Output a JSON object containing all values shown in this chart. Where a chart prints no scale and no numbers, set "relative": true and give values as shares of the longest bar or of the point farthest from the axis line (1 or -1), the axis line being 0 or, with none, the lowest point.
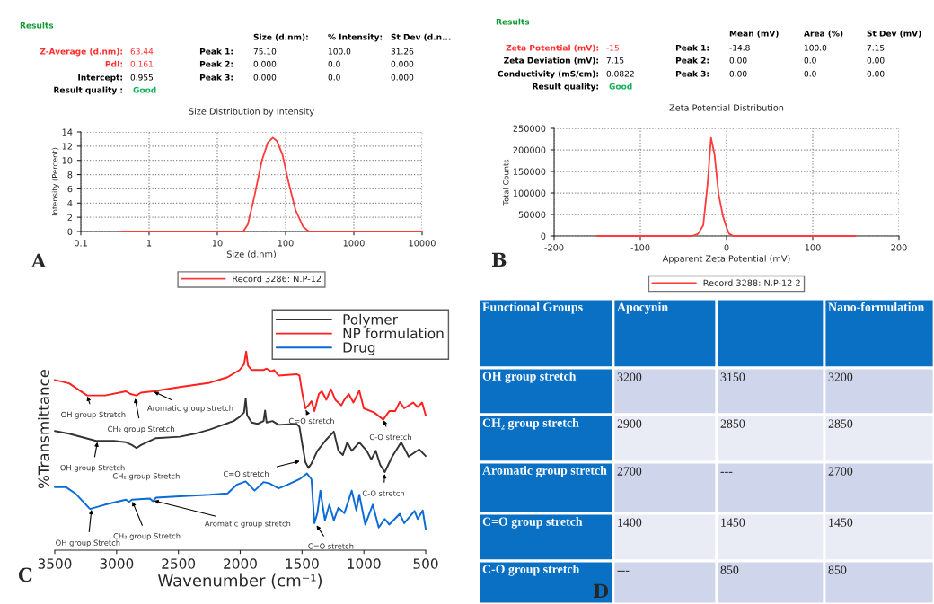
{
  "chart_data": [
    {
      "type": "line",
      "title": "Size Distribution by Intensity",
      "xlabel": "Size (d.nm)",
      "ylabel": "Intensity (Percent)",
      "log": "x",
      "xlim": [
        0.1,
        10000
      ],
      "xticks": [
        0.1,
        1,
        10,
        100,
        1000,
        10000
      ],
      "ylim": [
        0,
        14
      ],
      "yticks": [
        0,
        2,
        4,
        6,
        8,
        10,
        12,
        14
      ],
      "grid": true,
      "legend": "bottom",
      "series": [
        {
          "name": "Record 3286: N.P-12",
          "color": "#ff3b3b",
          "x": [
            0.4,
            1,
            10,
            20,
            24,
            28,
            35,
            45,
            55,
            65,
            75,
            90,
            110,
            140,
            180,
            220,
            1000,
            10000
          ],
          "values": [
            0,
            0,
            0,
            0,
            0,
            1,
            5,
            10,
            12.5,
            13.2,
            12.7,
            10.8,
            7,
            3,
            0.7,
            0,
            0,
            0
          ]
        }
      ],
      "annotations": [
        "Results",
        "Size (d.nm):",
        "% Intensity:",
        "St Dev (d.n...",
        "Z-Average (d.nm):",
        "63.44",
        "Peak 1:",
        "75.10",
        "100.0",
        "31.26",
        "PdI:",
        "0.161",
        "Peak 2:",
        "0.000",
        "0.0",
        "0.000",
        "Intercept:",
        "0.955",
        "Peak 3:",
        "0.000",
        "0.0",
        "0.000",
        "Result quality :",
        "Good",
        "A"
      ]
    },
    {
      "type": "line",
      "title": "Zeta Potential Distribution",
      "xlabel": "Apparent Zeta Potential (mV)",
      "ylabel": "Total Counts",
      "xlim": [
        -200,
        200
      ],
      "xticks": [
        -200,
        -100,
        0,
        100,
        200
      ],
      "ylim": [
        0,
        250000
      ],
      "yticks": [
        0,
        50000,
        100000,
        150000,
        200000,
        250000
      ],
      "grid": true,
      "legend": "bottom",
      "series": [
        {
          "name": "Record 3288: N.P-12 2",
          "color": "#ff3b3b",
          "x": [
            -150,
            -40,
            -33,
            -27,
            -22,
            -18,
            -14,
            -9,
            -4,
            0,
            3,
            8,
            150
          ],
          "values": [
            0,
            0,
            5000,
            25000,
            120000,
            228000,
            190000,
            95000,
            45000,
            20000,
            5000,
            0,
            0
          ]
        }
      ],
      "annotations": [
        "Results",
        "Mean (mV)",
        "Area (%)",
        "St Dev (mV)",
        "Zeta Potential (mV):",
        "-15",
        "Peak 1:",
        "-14.8",
        "100.0",
        "7.15",
        "Zeta Deviation (mV):",
        "7.15",
        "Peak 2:",
        "0.00",
        "0.0",
        "0.00",
        "Conductivity (mS/cm):",
        "0.0822",
        "Peak 3:",
        "0.00",
        "0.0",
        "0.00",
        "Result quality:",
        "Good",
        "B"
      ]
    },
    {
      "type": "line",
      "xlabel": "Wavenumber (cm⁻¹)",
      "ylabel": "%Transmittance",
      "relative": true,
      "xlim": [
        3500,
        500
      ],
      "xticks": [
        3500,
        3000,
        2500,
        2000,
        1500,
        1000,
        500
      ],
      "legend": "top right",
      "series": [
        {
          "name": "Polymer",
          "color": "#333333",
          "x": [
            3500,
            3384,
            3166,
            3021,
            2924,
            2876,
            2839,
            2803,
            2682,
            2489,
            2368,
            2247,
            2150,
            2053,
            2005,
            1969,
            1956,
            1944,
            1908,
            1860,
            1811,
            1799,
            1787,
            1739,
            1690,
            1545,
            1521,
            1497,
            1473,
            1448,
            1424,
            1376,
            1303,
            1243,
            1206,
            1170,
            1134,
            1098,
            1037,
            977,
            940,
            904,
            868,
            831,
            771,
            698,
            638,
            553,
            500
          ],
          "values": [
            0.6,
            0.586,
            0.55,
            0.55,
            0.543,
            0.529,
            0.514,
            0.529,
            0.564,
            0.571,
            0.586,
            0.607,
            0.629,
            0.65,
            0.671,
            0.693,
            0.764,
            0.679,
            0.643,
            0.636,
            0.65,
            0.703,
            0.643,
            0.65,
            0.631,
            0.636,
            0.621,
            0.529,
            0.443,
            0.414,
            0.436,
            0.5,
            0.557,
            0.597,
            0.5,
            0.479,
            0.543,
            0.5,
            0.543,
            0.5,
            0.457,
            0.5,
            0.429,
            0.393,
            0.471,
            0.543,
            0.471,
            0.507,
            0.474
          ]
        },
        {
          "name": "NP formulation",
          "color": "#ff2020",
          "x": [
            3500,
            3384,
            3239,
            3094,
            2924,
            2888,
            2839,
            2803,
            2706,
            2489,
            2247,
            2102,
            2005,
            1969,
            1952,
            1937,
            1908,
            1811,
            1787,
            1751,
            1727,
            1690,
            1545,
            1521,
            1497,
            1473,
            1448,
            1424,
            1400,
            1364,
            1340,
            1303,
            1267,
            1231,
            1182,
            1158,
            1122,
            1085,
            1037,
            1001,
            916,
            844,
            795,
            747,
            710,
            674,
            602,
            565,
            529,
            500
          ],
          "values": [
            0.857,
            0.84,
            0.779,
            0.779,
            0.8,
            0.786,
            0.779,
            0.793,
            0.8,
            0.821,
            0.843,
            0.871,
            0.907,
            0.936,
            1,
            0.929,
            0.907,
            0.907,
            0.914,
            0.9,
            0.907,
            0.879,
            0.886,
            0.879,
            0.786,
            0.714,
            0.729,
            0.75,
            0.7,
            0.786,
            0.8,
            0.757,
            0.81,
            0.757,
            0.729,
            0.757,
            0.786,
            0.743,
            0.803,
            0.714,
            0.693,
            0.657,
            0.7,
            0.7,
            0.746,
            0.714,
            0.743,
            0.721,
            0.743,
            0.679
          ]
        },
        {
          "name": "Drug",
          "color": "#0a6ad6",
          "x": [
            3500,
            3408,
            3335,
            3215,
            3094,
            2924,
            2900,
            2876,
            2731,
            2706,
            2682,
            2489,
            2247,
            2102,
            2029,
            1956,
            1884,
            1811,
            1763,
            1690,
            1618,
            1521,
            1460,
            1424,
            1400,
            1376,
            1352,
            1315,
            1279,
            1243,
            1206,
            1158,
            1098,
            1061,
            1037,
            989,
            928,
            880,
            831,
            795,
            710,
            674,
            590,
            565,
            524,
            500
          ],
          "values": [
            0.317,
            0.317,
            0.286,
            0.207,
            0.229,
            0.254,
            0.243,
            0.254,
            0.26,
            0.246,
            0.264,
            0.271,
            0.279,
            0.286,
            0.329,
            0.346,
            0.3,
            0.343,
            0.336,
            0.311,
            0.329,
            0.357,
            0.386,
            0.357,
            0.136,
            0.186,
            0.3,
            0.15,
            0.229,
            0.15,
            0.214,
            0.186,
            0.3,
            0.2,
            0.279,
            0.129,
            0.229,
            0.114,
            0.157,
            0.129,
            0.183,
            0.136,
            0.197,
            0.157,
            0.2,
            0.107
          ]
        }
      ],
      "annotations": [
        {
          "text": "OH group Stretch",
          "x": 3239,
          "y": 0.78
        },
        {
          "text": "CH₂ group Stretch",
          "x": 2852,
          "y": 0.77
        },
        {
          "text": "Aromatic group stretch",
          "x": 2706,
          "y": 0.8
        },
        {
          "text": "C=O stretch",
          "x": 1473,
          "y": 0.71
        },
        {
          "text": "C-O stretch",
          "x": 844,
          "y": 0.66
        },
        {
          "text": "OH group Stretch",
          "x": 3154,
          "y": 0.55
        },
        "CH₂ group Stretch",
        {
          "text": "C=O stretch",
          "x": 1509,
          "y": 0.45
        },
        {
          "text": "C-O stretch",
          "x": 831,
          "y": 0.39
        },
        {
          "text": "OH group Stretch",
          "x": 3202,
          "y": 0.21
        },
        {
          "text": "CH₂ group Stretch",
          "x": 2876,
          "y": 0.25
        },
        {
          "text": "Aromatic group stretch",
          "x": 2706,
          "y": 0.25
        },
        {
          "text": "C=O stretch",
          "x": 1388,
          "y": 0.13
        },
        "C"
      ]
    },
    {
      "type": "other",
      "categories": [
        "Functional Groups",
        "Apocynin",
        null,
        "Nano-formulation"
      ],
      "y_categories": [
        "OH group stretch",
        "CH₂ group stretch",
        "Aromatic group stretch",
        "C=O group stretch",
        "C-O group stretch"
      ],
      "cell_labels": [
        [
          "3200",
          "3150",
          "3200"
        ],
        [
          "2900",
          "2850",
          "2850"
        ],
        [
          "2700",
          "---",
          "2700"
        ],
        [
          "1400",
          "1450",
          "1450"
        ],
        [
          "---",
          "850",
          "850"
        ]
      ],
      "annotations": [
        "D"
      ]
    }
  ]
}
